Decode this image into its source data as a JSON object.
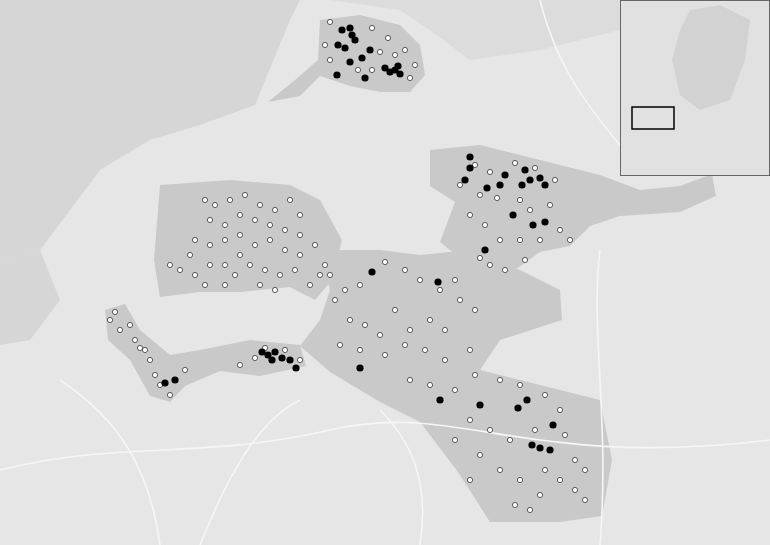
{
  "chart_data": {
    "type": "scatter",
    "xlim": [
      0,
      77
    ],
    "ylim": [
      0,
      54.5
    ],
    "tick_labels": false,
    "grid": false,
    "series": [
      {
        "color": "#000000",
        "marker": "filled",
        "x": [
          34.2,
          35.0,
          33.8,
          34.5,
          35.5,
          36.2,
          35.0,
          33.7,
          36.5,
          38.5,
          39.0,
          39.5,
          40.0,
          39.8,
          35.2,
          37.0,
          47.0,
          47.0,
          46.5,
          48.7,
          50.0,
          50.5,
          52.5,
          53.0,
          54.0,
          54.5,
          52.2,
          51.3,
          54.5,
          53.3,
          48.5,
          37.2,
          43.8,
          36.0,
          44.0,
          48.0,
          51.8,
          52.7,
          53.2,
          54.0,
          55.0,
          55.3,
          16.5,
          17.5,
          26.2,
          26.8,
          27.5,
          28.2,
          29.0,
          29.6,
          27.2
        ],
        "values": [
          51.5,
          51.7,
          50.0,
          49.7,
          50.5,
          48.7,
          48.3,
          47.0,
          46.7,
          47.7,
          47.3,
          47.5,
          47.1,
          47.9,
          51.0,
          49.5,
          38.8,
          37.7,
          36.5,
          35.7,
          36.0,
          37.0,
          37.5,
          36.5,
          36.7,
          36.0,
          36.0,
          33.0,
          32.3,
          32.0,
          29.5,
          27.3,
          26.3,
          17.7,
          14.5,
          14.0,
          13.7,
          14.5,
          10.0,
          9.7,
          9.5,
          12.0,
          16.2,
          16.5,
          19.3,
          19.0,
          19.3,
          18.7,
          18.5,
          17.7,
          18.5
        ]
      },
      {
        "color": "#ffffff",
        "marker": "open",
        "x": [
          32.5,
          33.0,
          37.2,
          38.8,
          40.5,
          41.5,
          41.0,
          37.2,
          38.0,
          35.8,
          33.0,
          39.5,
          47.5,
          49.0,
          46.0,
          48.0,
          49.7,
          51.5,
          53.5,
          55.5,
          52.0,
          53.0,
          55.0,
          56.0,
          57.0,
          47.0,
          48.5,
          50.0,
          52.0,
          54.0,
          49.0,
          48.0,
          50.5,
          52.5,
          20.5,
          21.5,
          23.0,
          24.5,
          26.0,
          27.5,
          29.0,
          30.0,
          21.0,
          22.5,
          24.0,
          25.5,
          27.0,
          28.5,
          30.0,
          31.5,
          19.5,
          21.0,
          22.5,
          24.0,
          25.5,
          27.0,
          28.5,
          30.0,
          18.0,
          19.5,
          21.0,
          22.5,
          23.5,
          25.0,
          26.5,
          28.0,
          29.5,
          31.0,
          32.0,
          24.0,
          17.0,
          19.0,
          26.0,
          22.5,
          20.5,
          27.5,
          33.5,
          34.5,
          36.0,
          38.5,
          40.5,
          42.0,
          44.0,
          45.5,
          35.0,
          36.5,
          38.0,
          39.5,
          41.0,
          43.0,
          44.5,
          46.0,
          47.5,
          34.0,
          36.0,
          38.5,
          40.5,
          42.5,
          44.5,
          47.0,
          41.0,
          43.0,
          45.5,
          47.5,
          50.0,
          52.0,
          54.5,
          56.0,
          47.0,
          49.0,
          51.0,
          53.5,
          56.5,
          57.5,
          48.0,
          50.0,
          52.0,
          54.5,
          56.0,
          57.5,
          51.5,
          53.0,
          54.0,
          58.5,
          47.0,
          45.5,
          58.5,
          32.5,
          33.0,
          11.0,
          12.0,
          11.5,
          13.5,
          14.5,
          15.0,
          14.0,
          15.5,
          16.0,
          17.0,
          18.5,
          24.0,
          25.5,
          26.5,
          28.5,
          30.0,
          13.0
        ],
        "values": [
          50.0,
          48.5,
          51.7,
          50.7,
          49.5,
          48.0,
          46.7,
          47.5,
          49.3,
          47.5,
          52.3,
          49.0,
          38.0,
          37.3,
          36.0,
          35.0,
          34.7,
          38.2,
          37.7,
          36.5,
          34.5,
          33.5,
          34.0,
          31.5,
          30.5,
          33.0,
          32.0,
          30.5,
          30.5,
          30.5,
          28.0,
          28.7,
          27.5,
          28.5,
          34.5,
          34.0,
          34.5,
          35.0,
          34.0,
          33.5,
          34.5,
          33.0,
          32.5,
          32.0,
          33.0,
          32.5,
          32.0,
          31.5,
          31.0,
          30.0,
          30.5,
          30.0,
          30.5,
          31.0,
          30.0,
          30.5,
          29.5,
          29.0,
          27.5,
          27.0,
          28.0,
          28.0,
          27.0,
          28.0,
          27.5,
          27.0,
          27.5,
          26.0,
          27.0,
          29.0,
          28.0,
          29.0,
          26.0,
          26.0,
          26.0,
          25.5,
          24.5,
          25.5,
          26.0,
          28.3,
          27.5,
          26.5,
          25.5,
          26.5,
          22.5,
          22.0,
          21.0,
          23.5,
          21.5,
          22.5,
          21.5,
          24.5,
          23.5,
          20.0,
          19.5,
          19.0,
          20.0,
          19.5,
          18.5,
          19.5,
          16.5,
          16.0,
          15.5,
          17.0,
          16.5,
          16.0,
          15.0,
          13.5,
          12.5,
          11.5,
          10.5,
          11.5,
          11.0,
          8.5,
          9.0,
          7.5,
          6.5,
          7.5,
          6.5,
          5.5,
          4.0,
          3.5,
          5.0,
          4.5,
          6.5,
          10.5,
          7.5,
          28.0,
          27.0,
          22.5,
          21.5,
          23.3,
          20.5,
          19.5,
          18.5,
          19.7,
          17.0,
          16.0,
          15.0,
          17.5,
          18.0,
          18.7,
          19.7,
          19.5,
          18.5,
          22.0
        ]
      }
    ]
  }
}
